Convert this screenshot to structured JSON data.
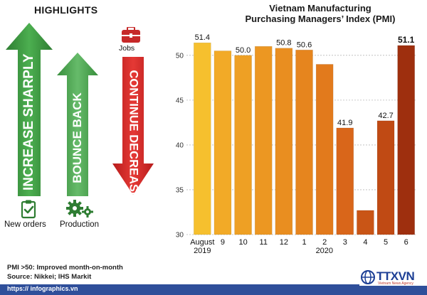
{
  "highlights": {
    "title": "HIGHLIGHTS",
    "items": [
      {
        "arrow_text": "INCREASE SHARPLY",
        "caption": "New orders",
        "icon": "clipboard-check-icon",
        "color": "#43a047"
      },
      {
        "arrow_text": "BOUNCE BACK",
        "caption": "Production",
        "icon": "gears-icon",
        "color": "#4caf50"
      },
      {
        "arrow_text": "CONTINUE DECREASING",
        "caption": "Jobs",
        "icon": "briefcase-icon",
        "color": "#c62828"
      }
    ]
  },
  "chart_data": {
    "type": "bar",
    "title_line1": "Vietnam Manufacturing",
    "title_line2": "Purchasing Managers’ Index (PMI)",
    "categories": [
      "August",
      "9",
      "10",
      "11",
      "12",
      "1",
      "2",
      "3",
      "4",
      "5",
      "6"
    ],
    "year_labels": [
      {
        "after_index": 0,
        "text": "2019"
      },
      {
        "after_index": 5,
        "text": "2020"
      }
    ],
    "values": [
      51.4,
      50.5,
      50.0,
      51.0,
      50.8,
      50.6,
      49.0,
      41.9,
      32.7,
      42.7,
      51.1
    ],
    "data_labels": [
      "51.4",
      "",
      "50.0",
      "",
      "50.8",
      "50.6",
      "",
      "41.9",
      "",
      "42.7",
      "51.1"
    ],
    "bold_labels": [
      false,
      false,
      false,
      false,
      false,
      false,
      false,
      false,
      false,
      false,
      true
    ],
    "colors": [
      "#f6c02e",
      "#f2aa27",
      "#eea024",
      "#ec9722",
      "#e98e20",
      "#e6851e",
      "#e27a1c",
      "#d9661a",
      "#c95516",
      "#c04a14",
      "#9e2f0e"
    ],
    "y_ticks": [
      "30",
      "35",
      "40",
      "45",
      "50"
    ],
    "ylim": [
      30,
      53
    ]
  },
  "footer": {
    "note": "PMI >50: Improved month-on-month",
    "source": "Source: Nikkei; IHS Markit",
    "url": "https:// infographics.vn",
    "logo_text": "TTXVN",
    "logo_sub": "Vietnam News Agency"
  }
}
